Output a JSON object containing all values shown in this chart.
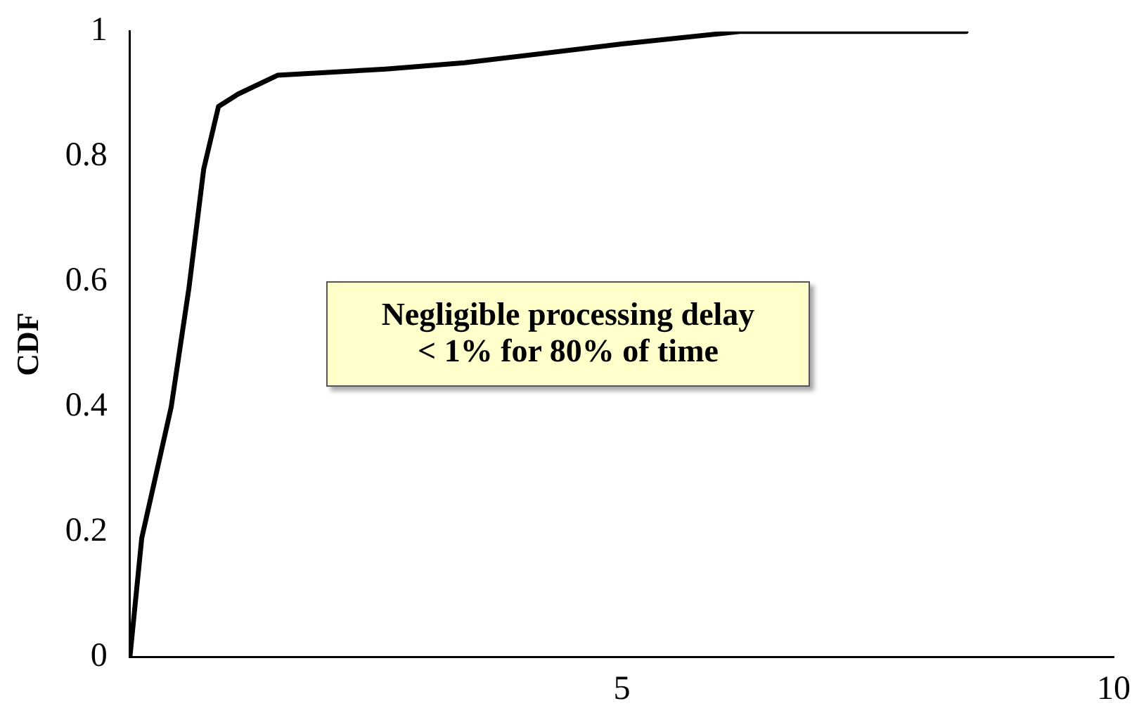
{
  "chart_data": {
    "type": "line",
    "ylabel": "CDF",
    "series": [
      {
        "color": "#000000",
        "x": [
          0,
          0.12,
          0.42,
          0.6,
          0.75,
          0.9,
          1.1,
          1.5,
          2.6,
          3.4,
          5,
          6.2,
          8.5
        ],
        "values": [
          0,
          0.19,
          0.4,
          0.59,
          0.78,
          0.88,
          0.9,
          0.93,
          0.94,
          0.95,
          0.98,
          1,
          1
        ]
      }
    ],
    "xlim": [
      0,
      10
    ],
    "xticks": [
      5,
      10
    ],
    "ylim": [
      0,
      1
    ],
    "yticks": [
      0,
      0.2,
      0.4,
      0.6,
      0.8,
      1
    ],
    "grid": false,
    "legend": false,
    "marker": "none",
    "line_style": "solid",
    "annotations": [
      "Negligible processing delay\n< 1% for 80% of time"
    ]
  }
}
